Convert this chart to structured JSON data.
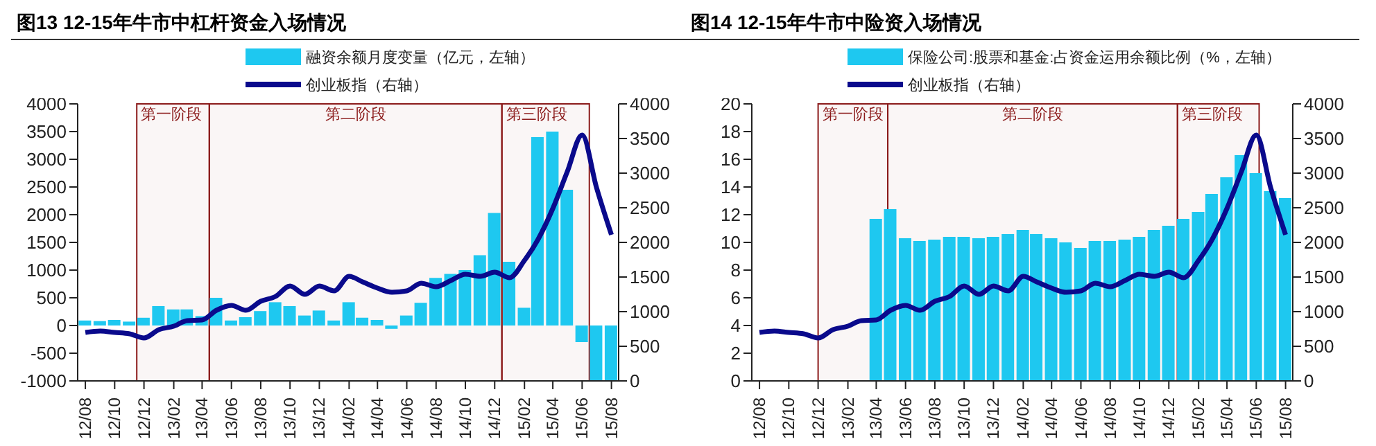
{
  "chart_data": [
    {
      "type": "bar",
      "title": "图13 12-15年牛市中杠杆资金入场情况",
      "x": [
        "2012-08",
        "2012-09",
        "2012-10",
        "2012-11",
        "2012-12",
        "2013-01",
        "2013-02",
        "2013-03",
        "2013-04",
        "2013-05",
        "2013-06",
        "2013-07",
        "2013-08",
        "2013-09",
        "2013-10",
        "2013-11",
        "2013-12",
        "2014-01",
        "2014-02",
        "2014-03",
        "2014-04",
        "2014-05",
        "2014-06",
        "2014-07",
        "2014-08",
        "2014-09",
        "2014-10",
        "2014-11",
        "2014-12",
        "2015-01",
        "2015-02",
        "2015-03",
        "2015-04",
        "2015-05",
        "2015-06",
        "2015-07",
        "2015-08"
      ],
      "xlim": [
        "2012-07-16",
        "2015-08-16"
      ],
      "xticks": [
        {
          "value": "2012-08",
          "label": "12/08"
        },
        {
          "value": "2012-10",
          "label": "12/10"
        },
        {
          "value": "2012-12",
          "label": "12/12"
        },
        {
          "value": "2013-02",
          "label": "13/02"
        },
        {
          "value": "2013-04",
          "label": "13/04"
        },
        {
          "value": "2013-06",
          "label": "13/06"
        },
        {
          "value": "2013-08",
          "label": "13/08"
        },
        {
          "value": "2013-10",
          "label": "13/10"
        },
        {
          "value": "2013-12",
          "label": "13/12"
        },
        {
          "value": "2014-02",
          "label": "14/02"
        },
        {
          "value": "2014-04",
          "label": "14/04"
        },
        {
          "value": "2014-06",
          "label": "14/06"
        },
        {
          "value": "2014-08",
          "label": "14/08"
        },
        {
          "value": "2014-10",
          "label": "14/10"
        },
        {
          "value": "2014-12",
          "label": "14/12"
        },
        {
          "value": "2015-02",
          "label": "15/02"
        },
        {
          "value": "2015-04",
          "label": "15/04"
        },
        {
          "value": "2015-06",
          "label": "15/06"
        },
        {
          "value": "2015-08",
          "label": "15/08"
        }
      ],
      "series": [
        {
          "name": "融资余额月度变量（亿元，左轴）",
          "color": "#1ec8f0",
          "values": [
            90,
            80,
            100,
            70,
            140,
            350,
            290,
            290,
            170,
            500,
            90,
            150,
            260,
            420,
            350,
            180,
            270,
            90,
            420,
            140,
            100,
            -60,
            180,
            410,
            860,
            930,
            1000,
            1270,
            2030,
            1150,
            320,
            3400,
            3500,
            2450,
            -300,
            -1000,
            -1000
          ]
        },
        {
          "name": "创业板指（右轴）",
          "type": "line",
          "axis": "y2",
          "color": "#0a0a8c",
          "values": [
            700,
            720,
            700,
            680,
            620,
            740,
            790,
            870,
            880,
            1020,
            1090,
            1020,
            1150,
            1220,
            1370,
            1250,
            1370,
            1300,
            1510,
            1430,
            1340,
            1280,
            1300,
            1410,
            1360,
            1450,
            1540,
            1510,
            1570,
            1490,
            1740,
            2040,
            2490,
            3020,
            3550,
            2790,
            2110
          ]
        }
      ],
      "ylim": [
        -1000,
        4000
      ],
      "yticks": [
        -1000,
        -500,
        0,
        500,
        1000,
        1500,
        2000,
        2500,
        3000,
        3500,
        4000
      ],
      "y2lim": [
        0,
        4000
      ],
      "y2ticks": [
        0,
        500,
        1000,
        1500,
        2000,
        2500,
        3000,
        3500,
        4000
      ],
      "bands": [
        {
          "axis": "x",
          "from": "2012-11-16",
          "to": "2013-04-16",
          "label": "第一阶段",
          "color": "#8b1a1a"
        },
        {
          "axis": "x",
          "from": "2013-04-16",
          "to": "2014-12-16",
          "label": "第二阶段",
          "color": "#8b1a1a"
        },
        {
          "axis": "x",
          "from": "2014-12-16",
          "to": "2015-06-16",
          "label": "第三阶段",
          "color": "#8b1a1a"
        }
      ],
      "grid": false,
      "legend": "top",
      "marker": "none",
      "line_style": "solid"
    },
    {
      "type": "bar",
      "title": "图14 12-15年牛市中险资入场情况",
      "x": [
        "2012-08",
        "2012-09",
        "2012-10",
        "2012-11",
        "2012-12",
        "2013-01",
        "2013-02",
        "2013-03",
        "2013-04",
        "2013-05",
        "2013-06",
        "2013-07",
        "2013-08",
        "2013-09",
        "2013-10",
        "2013-11",
        "2013-12",
        "2014-01",
        "2014-02",
        "2014-03",
        "2014-04",
        "2014-05",
        "2014-06",
        "2014-07",
        "2014-08",
        "2014-09",
        "2014-10",
        "2014-11",
        "2014-12",
        "2015-01",
        "2015-02",
        "2015-03",
        "2015-04",
        "2015-05",
        "2015-06",
        "2015-07",
        "2015-08"
      ],
      "xlim": [
        "2012-07-16",
        "2015-08-16"
      ],
      "xticks": [
        {
          "value": "2012-08",
          "label": "12/08"
        },
        {
          "value": "2012-10",
          "label": "12/10"
        },
        {
          "value": "2012-12",
          "label": "12/12"
        },
        {
          "value": "2013-02",
          "label": "13/02"
        },
        {
          "value": "2013-04",
          "label": "13/04"
        },
        {
          "value": "2013-06",
          "label": "13/06"
        },
        {
          "value": "2013-08",
          "label": "13/08"
        },
        {
          "value": "2013-10",
          "label": "13/10"
        },
        {
          "value": "2013-12",
          "label": "13/12"
        },
        {
          "value": "2014-02",
          "label": "14/02"
        },
        {
          "value": "2014-04",
          "label": "14/04"
        },
        {
          "value": "2014-06",
          "label": "14/06"
        },
        {
          "value": "2014-08",
          "label": "14/08"
        },
        {
          "value": "2014-10",
          "label": "14/10"
        },
        {
          "value": "2014-12",
          "label": "14/12"
        },
        {
          "value": "2015-02",
          "label": "15/02"
        },
        {
          "value": "2015-04",
          "label": "15/04"
        },
        {
          "value": "2015-06",
          "label": "15/06"
        },
        {
          "value": "2015-08",
          "label": "15/08"
        }
      ],
      "series": [
        {
          "name": "保险公司:股票和基金:占资金运用余额比例（%，左轴）",
          "color": "#1ec8f0",
          "values": [
            null,
            null,
            null,
            null,
            null,
            null,
            null,
            null,
            11.7,
            12.4,
            10.3,
            10.1,
            10.2,
            10.4,
            10.4,
            10.3,
            10.4,
            10.6,
            10.9,
            10.6,
            10.3,
            10.0,
            9.6,
            10.1,
            10.1,
            10.2,
            10.4,
            10.9,
            11.2,
            11.7,
            12.2,
            13.5,
            14.7,
            16.3,
            15.0,
            13.7,
            13.2
          ]
        },
        {
          "name": "创业板指（右轴）",
          "type": "line",
          "axis": "y2",
          "color": "#0a0a8c",
          "values": [
            700,
            720,
            700,
            680,
            620,
            740,
            790,
            870,
            880,
            1020,
            1090,
            1020,
            1150,
            1220,
            1370,
            1250,
            1370,
            1300,
            1510,
            1430,
            1340,
            1280,
            1300,
            1410,
            1360,
            1450,
            1540,
            1510,
            1570,
            1490,
            1740,
            2040,
            2490,
            3020,
            3550,
            2790,
            2110
          ]
        }
      ],
      "ylim": [
        0,
        20
      ],
      "yticks": [
        0,
        2,
        4,
        6,
        8,
        10,
        12,
        14,
        16,
        18,
        20
      ],
      "y2lim": [
        0,
        4000
      ],
      "y2ticks": [
        0,
        500,
        1000,
        1500,
        2000,
        2500,
        3000,
        3500,
        4000
      ],
      "bands": [
        {
          "axis": "x",
          "from": "2012-12-01",
          "to": "2013-04-25",
          "label": "第一阶段",
          "color": "#8b1a1a"
        },
        {
          "axis": "x",
          "from": "2013-04-25",
          "to": "2014-12-19",
          "label": "第二阶段",
          "color": "#8b1a1a"
        },
        {
          "axis": "x",
          "from": "2014-12-19",
          "to": "2015-06-07",
          "label": "第三阶段",
          "color": "#8b1a1a"
        }
      ],
      "grid": false,
      "legend": "top",
      "marker": "none",
      "line_style": "solid"
    }
  ]
}
